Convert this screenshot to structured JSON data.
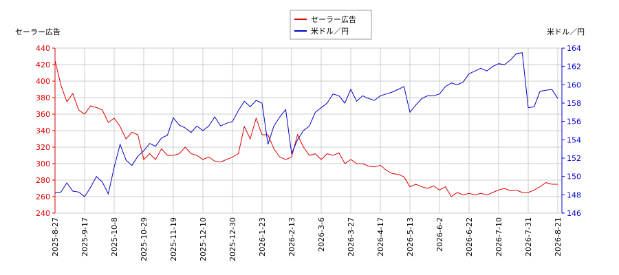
{
  "chart_data": {
    "type": "line",
    "ylabel": "セーラー広告",
    "y2label": "米ドル／円",
    "categories": [
      "2025-8-27",
      null,
      null,
      null,
      null,
      "2025-9-17",
      null,
      null,
      null,
      null,
      "2025-10-8",
      null,
      null,
      null,
      null,
      "2025-10-29",
      null,
      null,
      null,
      null,
      "2025-11-19",
      null,
      null,
      null,
      null,
      "2025-12-10",
      null,
      null,
      null,
      null,
      "2025-12-30",
      null,
      null,
      null,
      null,
      "2026-1-23",
      null,
      null,
      null,
      null,
      "2026-2-13",
      null,
      null,
      null,
      null,
      "2026-3-6",
      null,
      null,
      null,
      null,
      "2026-3-27",
      null,
      null,
      null,
      null,
      "2026-4-17",
      null,
      null,
      null,
      null,
      "2026-5-13",
      null,
      null,
      null,
      null,
      "2026-6-2",
      null,
      null,
      null,
      null,
      "2026-6-22",
      null,
      null,
      null,
      null,
      "2026-7-10",
      null,
      null,
      null,
      null,
      "2026-7-31",
      null,
      null,
      null,
      null,
      "2026-8-21"
    ],
    "series": [
      {
        "name": "セーラー広告",
        "color": "#dd0000",
        "values": [
          425,
          395,
          375,
          385,
          365,
          360,
          370,
          368,
          365,
          350,
          355,
          345,
          330,
          338,
          335,
          305,
          312,
          305,
          318,
          310,
          310,
          312,
          320,
          312,
          310,
          305,
          308,
          303,
          302,
          305,
          308,
          312,
          345,
          330,
          355,
          335,
          335,
          318,
          308,
          305,
          308,
          335,
          320,
          310,
          312,
          305,
          312,
          310,
          313,
          300,
          305,
          300,
          300,
          297,
          296,
          298,
          292,
          288,
          287,
          284,
          272,
          275,
          272,
          270,
          273,
          268,
          272,
          260,
          265,
          262,
          264,
          262,
          264,
          262,
          265,
          268,
          270,
          267,
          268,
          265,
          265,
          268,
          272,
          277,
          275,
          275
        ]
      },
      {
        "name": "米ドル／円",
        "color": "#0000cc",
        "axis": "y2",
        "values": [
          148.2,
          148.3,
          149.3,
          148.4,
          148.3,
          147.8,
          148.8,
          150.0,
          149.4,
          148.1,
          151.0,
          153.5,
          151.8,
          151.2,
          152.2,
          152.8,
          153.6,
          153.3,
          154.2,
          154.5,
          156.4,
          155.6,
          155.3,
          154.8,
          155.5,
          155.0,
          155.5,
          156.5,
          155.5,
          155.8,
          156.0,
          157.2,
          158.2,
          157.6,
          158.3,
          158.0,
          153.5,
          155.5,
          156.5,
          157.3,
          152.5,
          154.0,
          155.0,
          155.5,
          157.0,
          157.5,
          158.0,
          159.0,
          158.8,
          158.0,
          159.5,
          158.2,
          158.8,
          158.5,
          158.3,
          158.8,
          159.0,
          159.2,
          159.5,
          159.8,
          157.0,
          157.8,
          158.5,
          158.8,
          158.8,
          159.0,
          159.8,
          160.2,
          160.0,
          160.3,
          161.2,
          161.5,
          161.8,
          161.5,
          162.0,
          162.3,
          162.2,
          162.7,
          163.4,
          163.5,
          157.5,
          157.6,
          159.3,
          159.4,
          159.5,
          158.5
        ]
      }
    ],
    "ylim": [
      240,
      440
    ],
    "yticks": [
      240,
      260,
      280,
      300,
      320,
      340,
      360,
      380,
      400,
      420,
      440
    ],
    "y2lim": [
      146,
      164
    ],
    "y2ticks": [
      146,
      148,
      150,
      152,
      154,
      156,
      158,
      160,
      162,
      164
    ],
    "grid": true,
    "legend": "top"
  }
}
